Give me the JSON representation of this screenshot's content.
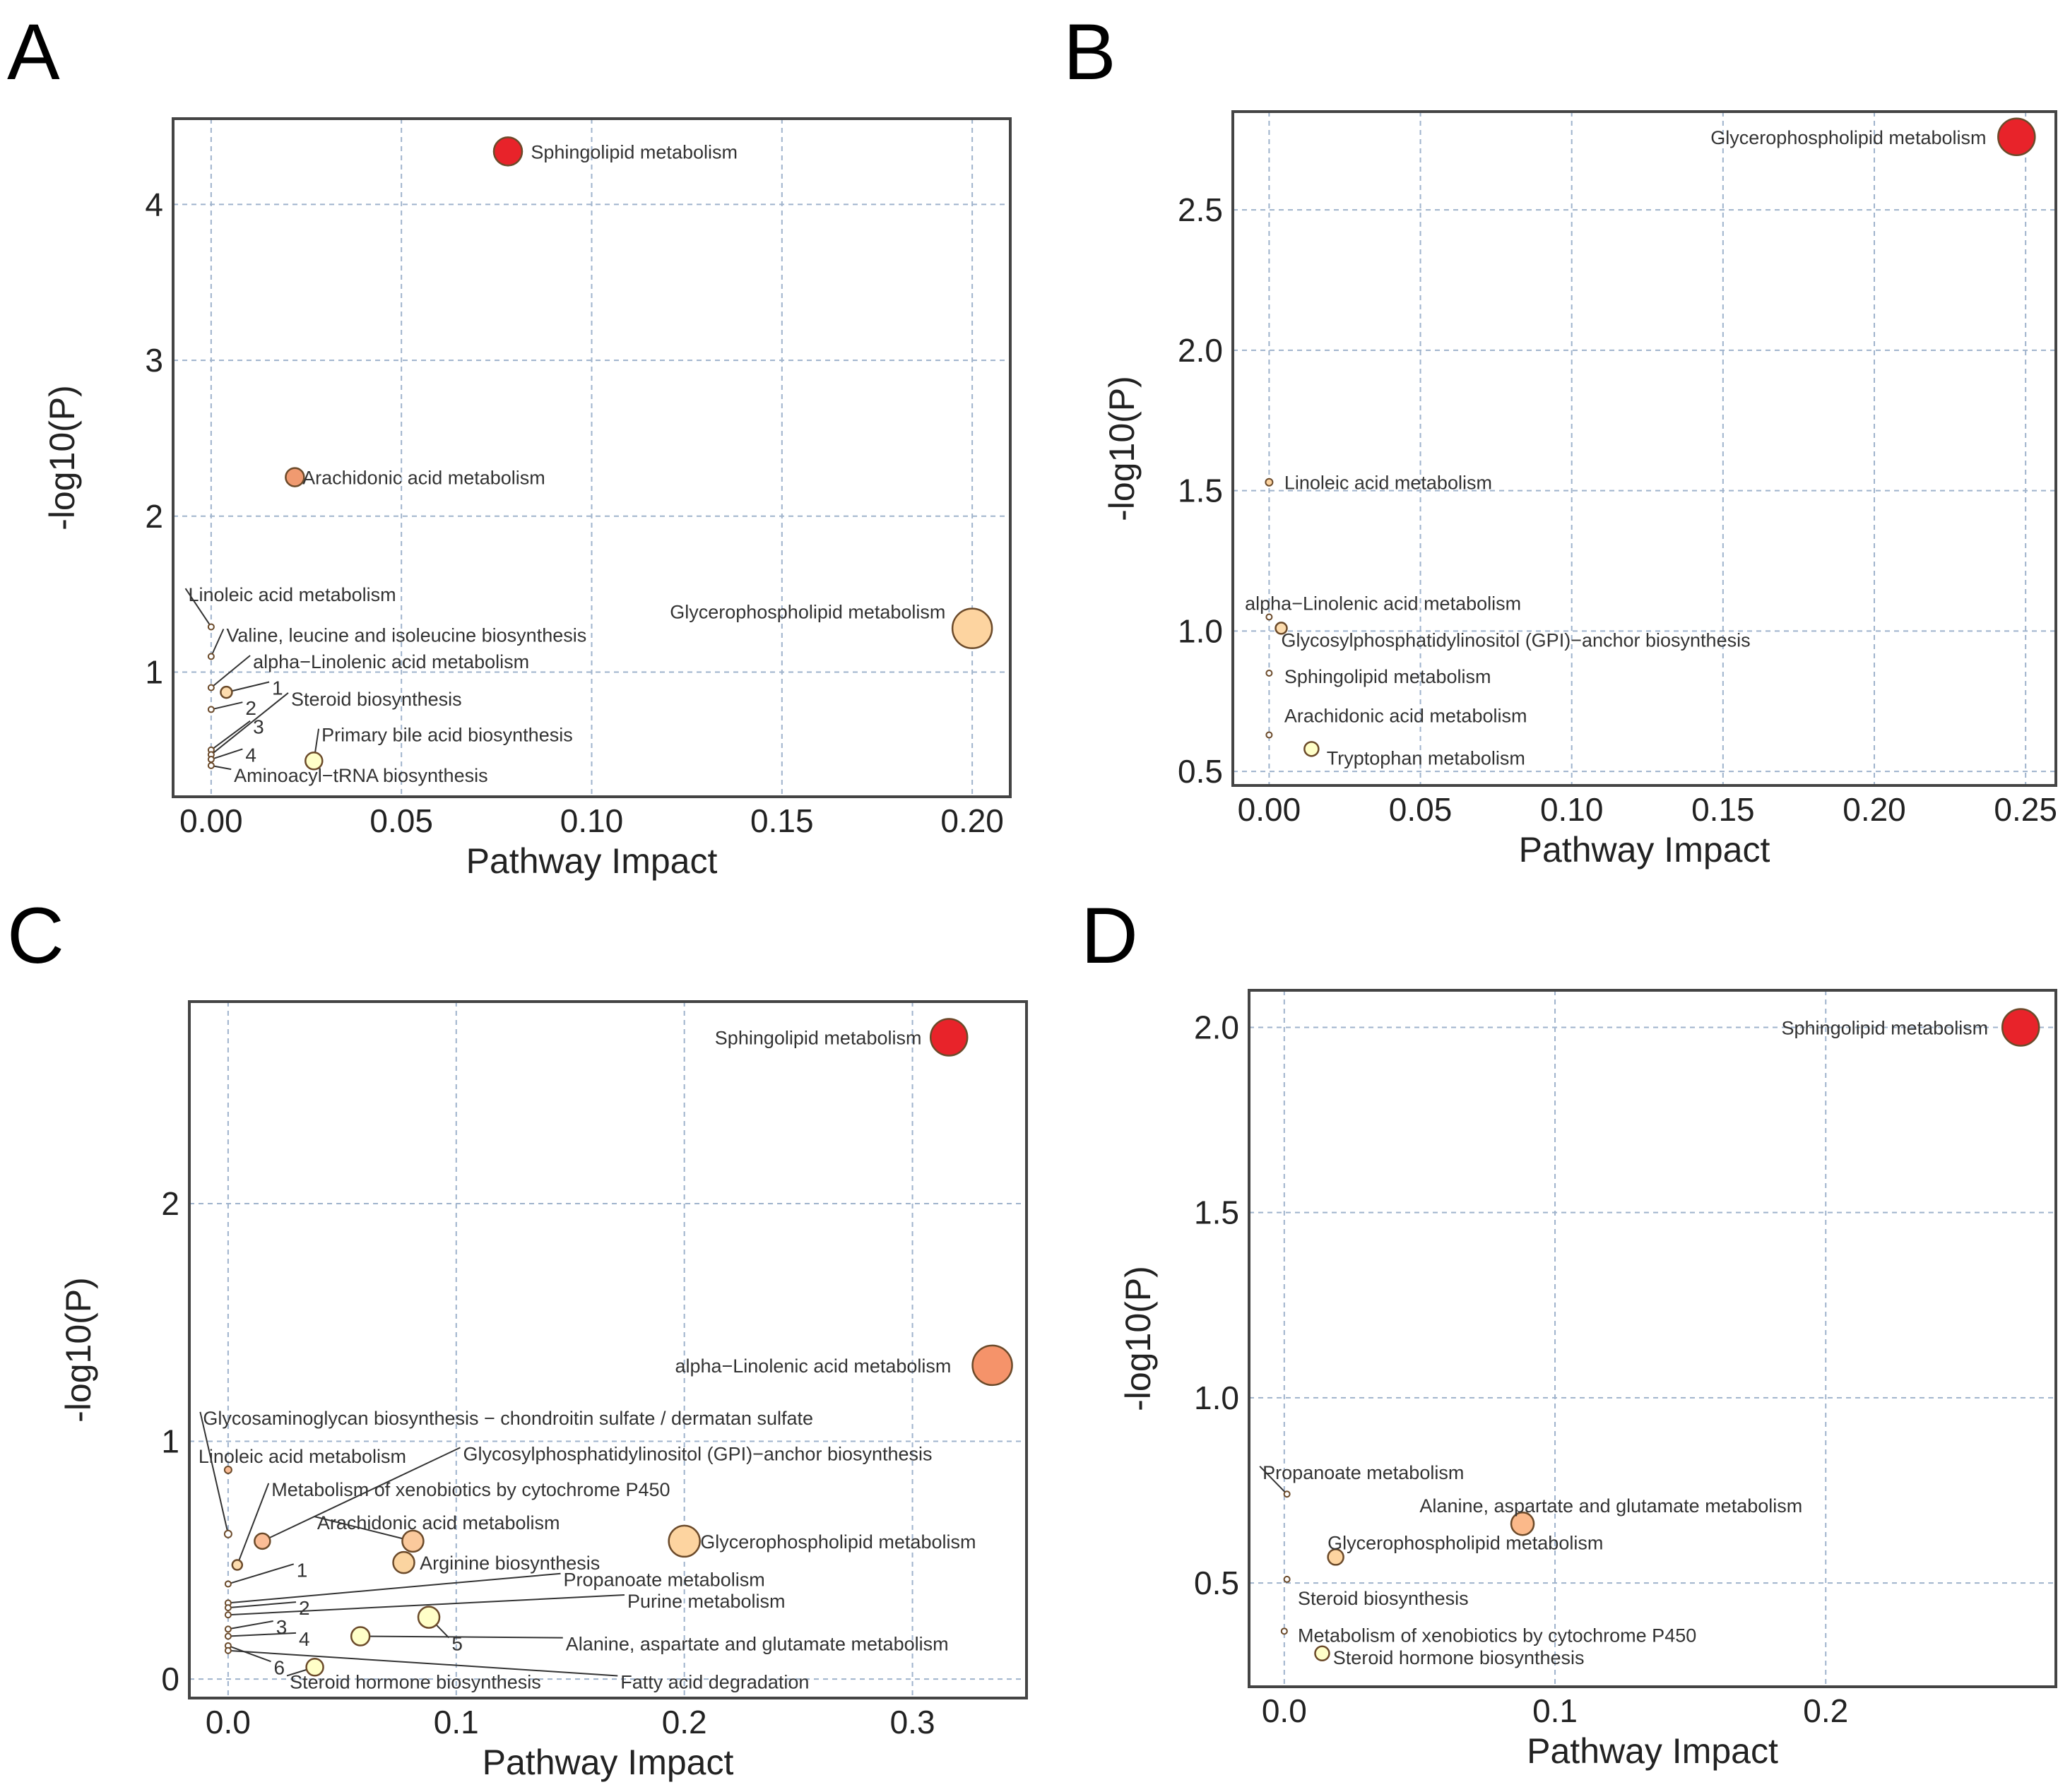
{
  "figure": {
    "panel_letters": [
      "A",
      "B",
      "C",
      "D"
    ]
  },
  "colors": {
    "grid": "#9fb3cc",
    "frame": "#444444",
    "point_stroke": "#6b4a2a",
    "leader": "#333333",
    "text": "#333333",
    "axis_text": "#222222"
  },
  "chart_data": [
    {
      "panel": "A",
      "type": "scatter",
      "xlabel": "Pathway Impact",
      "ylabel": "-log10(P)",
      "xlim": [
        -0.01,
        0.21
      ],
      "ylim": [
        0.2,
        4.55
      ],
      "xticks": [
        0,
        0.05,
        0.1,
        0.15,
        0.2
      ],
      "xtick_labels": [
        "0.00",
        "0.05",
        "0.10",
        "0.15",
        "0.20"
      ],
      "yticks": [
        1,
        2,
        3,
        4
      ],
      "ytick_labels": [
        "1",
        "2",
        "3",
        "4"
      ],
      "points": [
        {
          "x": 0.078,
          "y": 4.34,
          "r": 20,
          "color": "#e8232a",
          "label": "Sphingolipid metabolism",
          "lx": 0.084,
          "ly": 4.34,
          "anchor": "start"
        },
        {
          "x": 0.022,
          "y": 2.25,
          "r": 13,
          "color": "#f09a70",
          "label": "Arachidonic acid metabolism",
          "lx": 0.024,
          "ly": 2.25,
          "anchor": "start"
        },
        {
          "x": 0.2,
          "y": 1.28,
          "r": 28,
          "color": "#fdd4a0",
          "label": "Glycerophospholipid metabolism",
          "lx": 0.193,
          "ly": 1.39,
          "anchor": "end"
        },
        {
          "x": 0.0,
          "y": 1.29,
          "r": 4,
          "color": "#ffffff",
          "label": "Linoleic acid metabolism",
          "lx": -0.006,
          "ly": 1.5,
          "anchor": "start",
          "leader": true
        },
        {
          "x": 0.0,
          "y": 1.1,
          "r": 4,
          "color": "#ffffff",
          "label": "Valine, leucine and isoleucine biosynthesis",
          "lx": 0.004,
          "ly": 1.24,
          "anchor": "start",
          "leader": true
        },
        {
          "x": 0.0,
          "y": 0.9,
          "r": 4,
          "color": "#ffffff",
          "label": "alpha−Linolenic acid metabolism",
          "lx": 0.011,
          "ly": 1.07,
          "anchor": "start",
          "leader": true
        },
        {
          "x": 0.004,
          "y": 0.87,
          "r": 8,
          "color": "#fddcae",
          "label": "1",
          "lx": 0.016,
          "ly": 0.9,
          "anchor": "start",
          "leader": true
        },
        {
          "x": 0.0,
          "y": 0.76,
          "r": 4,
          "color": "#ffffff",
          "label": "2",
          "lx": 0.009,
          "ly": 0.77,
          "anchor": "start",
          "leader": true
        },
        {
          "x": 0.0,
          "y": 0.5,
          "r": 4,
          "color": "#ffffff",
          "label": "3",
          "lx": 0.011,
          "ly": 0.65,
          "anchor": "start",
          "leader": true
        },
        {
          "x": 0.0,
          "y": 0.47,
          "r": 4,
          "color": "#ffffff",
          "label": "Steroid biosynthesis",
          "lx": 0.021,
          "ly": 0.83,
          "anchor": "start",
          "leader": true
        },
        {
          "x": 0.0,
          "y": 0.44,
          "r": 4,
          "color": "#ffffff",
          "label": "4",
          "lx": 0.009,
          "ly": 0.47,
          "anchor": "start",
          "leader": true
        },
        {
          "x": 0.027,
          "y": 0.43,
          "r": 12,
          "color": "#ffffc8",
          "label": "Primary bile acid biosynthesis",
          "lx": 0.029,
          "ly": 0.6,
          "anchor": "start",
          "leader": true
        },
        {
          "x": 0.0,
          "y": 0.4,
          "r": 4,
          "color": "#ffffff",
          "label": "Aminoacyl−tRNA biosynthesis",
          "lx": 0.006,
          "ly": 0.34,
          "anchor": "start",
          "leader": true
        }
      ]
    },
    {
      "panel": "B",
      "type": "scatter",
      "xlabel": "Pathway Impact",
      "ylabel": "-log10(P)",
      "xlim": [
        -0.012,
        0.26
      ],
      "ylim": [
        0.45,
        2.85
      ],
      "xticks": [
        0,
        0.05,
        0.1,
        0.15,
        0.2,
        0.25
      ],
      "xtick_labels": [
        "0.00",
        "0.05",
        "0.10",
        "0.15",
        "0.20",
        "0.25"
      ],
      "yticks": [
        0.5,
        1.0,
        1.5,
        2.0,
        2.5
      ],
      "ytick_labels": [
        "0.5",
        "1.0",
        "1.5",
        "2.0",
        "2.5"
      ],
      "points": [
        {
          "x": 0.247,
          "y": 2.76,
          "r": 26,
          "color": "#e8232a",
          "label": "Glycerophospholipid metabolism",
          "lx": 0.237,
          "ly": 2.76,
          "anchor": "end"
        },
        {
          "x": 0.0,
          "y": 1.53,
          "r": 5,
          "color": "#fdd4a0",
          "label": "Linoleic acid metabolism",
          "lx": 0.005,
          "ly": 1.53,
          "anchor": "start"
        },
        {
          "x": 0.0,
          "y": 1.05,
          "r": 4,
          "color": "#ffffff",
          "label": "alpha−Linolenic acid metabolism",
          "lx": -0.008,
          "ly": 1.1,
          "anchor": "start"
        },
        {
          "x": 0.004,
          "y": 1.01,
          "r": 8,
          "color": "#fddcae",
          "label": "Glycosylphosphatidylinositol (GPI)−anchor biosynthesis",
          "lx": 0.004,
          "ly": 0.97,
          "anchor": "start"
        },
        {
          "x": 0.0,
          "y": 0.85,
          "r": 4,
          "color": "#ffffff",
          "label": "Sphingolipid metabolism",
          "lx": 0.005,
          "ly": 0.84,
          "anchor": "start"
        },
        {
          "x": 0.0,
          "y": 0.63,
          "r": 4,
          "color": "#ffffff",
          "label": "Arachidonic acid metabolism",
          "lx": 0.005,
          "ly": 0.7,
          "anchor": "start"
        },
        {
          "x": 0.014,
          "y": 0.58,
          "r": 10,
          "color": "#ffffc8",
          "label": "Tryptophan metabolism",
          "lx": 0.019,
          "ly": 0.55,
          "anchor": "start"
        }
      ]
    },
    {
      "panel": "C",
      "type": "scatter",
      "xlabel": "Pathway Impact",
      "ylabel": "-log10(P)",
      "xlim": [
        -0.017,
        0.35
      ],
      "ylim": [
        -0.08,
        2.85
      ],
      "xticks": [
        0,
        0.1,
        0.2,
        0.3
      ],
      "xtick_labels": [
        "0.0",
        "0.1",
        "0.2",
        "0.3"
      ],
      "yticks": [
        0,
        1,
        2
      ],
      "ytick_labels": [
        "0",
        "1",
        "2"
      ],
      "points": [
        {
          "x": 0.316,
          "y": 2.7,
          "r": 26,
          "color": "#e8232a",
          "label": "Sphingolipid metabolism",
          "lx": 0.304,
          "ly": 2.7,
          "anchor": "end"
        },
        {
          "x": 0.335,
          "y": 1.32,
          "r": 28,
          "color": "#f5936a",
          "label": "alpha−Linolenic acid metabolism",
          "lx": 0.317,
          "ly": 1.32,
          "anchor": "end"
        },
        {
          "x": 0.0,
          "y": 0.61,
          "r": 5,
          "color": "#ffffff",
          "label": "Glycosaminoglycan biosynthesis − chondroitin sulfate / dermatan sulfate",
          "lx": -0.011,
          "ly": 1.1,
          "anchor": "start",
          "leader": true
        },
        {
          "x": 0.0,
          "y": 0.88,
          "r": 5,
          "color": "#fbbd96",
          "label": "Linoleic acid metabolism",
          "lx": -0.013,
          "ly": 0.94,
          "anchor": "start"
        },
        {
          "x": 0.015,
          "y": 0.58,
          "r": 11,
          "color": "#fbbd96",
          "label": "Glycosylphosphatidylinositol (GPI)−anchor biosynthesis",
          "lx": 0.103,
          "ly": 0.95,
          "anchor": "start",
          "leader": true
        },
        {
          "x": 0.004,
          "y": 0.48,
          "r": 7,
          "color": "#fddcae",
          "label": "Metabolism of xenobiotics by cytochrome P450",
          "lx": 0.019,
          "ly": 0.8,
          "anchor": "start",
          "leader": true
        },
        {
          "x": 0.081,
          "y": 0.58,
          "r": 15,
          "color": "#fbc99c",
          "label": "Arachidonic acid metabolism",
          "lx": 0.039,
          "ly": 0.66,
          "anchor": "start",
          "leader": true
        },
        {
          "x": 0.2,
          "y": 0.58,
          "r": 22,
          "color": "#fdd4a0",
          "label": "Glycerophospholipid metabolism",
          "lx": 0.207,
          "ly": 0.58,
          "anchor": "start"
        },
        {
          "x": 0.077,
          "y": 0.49,
          "r": 15,
          "color": "#fbd4a0",
          "label": "Arginine biosynthesis",
          "lx": 0.084,
          "ly": 0.49,
          "anchor": "start"
        },
        {
          "x": 0.0,
          "y": 0.4,
          "r": 4,
          "color": "#ffffff",
          "label": "1",
          "lx": 0.03,
          "ly": 0.46,
          "anchor": "start",
          "leader": true
        },
        {
          "x": 0.0,
          "y": 0.32,
          "r": 4,
          "color": "#ffffff",
          "label": "Propanoate metabolism",
          "lx": 0.147,
          "ly": 0.42,
          "anchor": "start",
          "leader": true
        },
        {
          "x": 0.0,
          "y": 0.3,
          "r": 4,
          "color": "#ffffff",
          "label": "2",
          "lx": 0.031,
          "ly": 0.3,
          "anchor": "start",
          "leader": true
        },
        {
          "x": 0.0,
          "y": 0.27,
          "r": 4,
          "color": "#ffffff",
          "label": "Purine metabolism",
          "lx": 0.175,
          "ly": 0.33,
          "anchor": "start",
          "leader": true
        },
        {
          "x": 0.088,
          "y": 0.26,
          "r": 15,
          "color": "#ffffc8",
          "label": "5",
          "lx": 0.098,
          "ly": 0.15,
          "anchor": "start",
          "leader": true
        },
        {
          "x": 0.0,
          "y": 0.21,
          "r": 4,
          "color": "#ffffff",
          "label": "3",
          "lx": 0.021,
          "ly": 0.22,
          "anchor": "start",
          "leader": true
        },
        {
          "x": 0.058,
          "y": 0.18,
          "r": 13,
          "color": "#ffffc8",
          "label": "Alanine, aspartate and glutamate metabolism",
          "lx": 0.148,
          "ly": 0.15,
          "anchor": "start",
          "leader": true
        },
        {
          "x": 0.0,
          "y": 0.18,
          "r": 4,
          "color": "#ffffff",
          "label": "4",
          "lx": 0.031,
          "ly": 0.17,
          "anchor": "start",
          "leader": true
        },
        {
          "x": 0.0,
          "y": 0.14,
          "r": 4,
          "color": "#ffffff",
          "label": "6",
          "lx": 0.02,
          "ly": 0.05,
          "anchor": "start",
          "leader": true
        },
        {
          "x": 0.0,
          "y": 0.12,
          "r": 4,
          "color": "#ffffff",
          "label": "Fatty acid degradation",
          "lx": 0.172,
          "ly": -0.01,
          "anchor": "start",
          "leader": true
        },
        {
          "x": 0.038,
          "y": 0.05,
          "r": 12,
          "color": "#ffffc8",
          "label": "Steroid hormone biosynthesis",
          "lx": 0.027,
          "ly": -0.01,
          "anchor": "start",
          "leader": true
        }
      ]
    },
    {
      "panel": "D",
      "type": "scatter",
      "xlabel": "Pathway Impact",
      "ylabel": "-log10(P)",
      "xlim": [
        -0.013,
        0.285
      ],
      "ylim": [
        0.22,
        2.1
      ],
      "xticks": [
        0,
        0.1,
        0.2
      ],
      "xtick_labels": [
        "0.0",
        "0.1",
        "0.2"
      ],
      "yticks": [
        0.5,
        1.0,
        1.5,
        2.0
      ],
      "ytick_labels": [
        "0.5",
        "1.0",
        "1.5",
        "2.0"
      ],
      "points": [
        {
          "x": 0.272,
          "y": 2.0,
          "r": 26,
          "color": "#e8232a",
          "label": "Sphingolipid metabolism",
          "lx": 0.26,
          "ly": 2.0,
          "anchor": "end"
        },
        {
          "x": 0.001,
          "y": 0.74,
          "r": 4,
          "color": "#ffffff",
          "label": "Propanoate metabolism",
          "lx": -0.008,
          "ly": 0.8,
          "anchor": "start",
          "leader": true
        },
        {
          "x": 0.088,
          "y": 0.66,
          "r": 16,
          "color": "#fbb98a",
          "label": "Alanine, aspartate and glutamate metabolism",
          "lx": 0.05,
          "ly": 0.71,
          "anchor": "start"
        },
        {
          "x": 0.019,
          "y": 0.57,
          "r": 11,
          "color": "#fdd4a0",
          "label": "Glycerophospholipid metabolism",
          "lx": 0.016,
          "ly": 0.61,
          "anchor": "start"
        },
        {
          "x": 0.001,
          "y": 0.51,
          "r": 4,
          "color": "#ffffff",
          "label": "Steroid biosynthesis",
          "lx": 0.005,
          "ly": 0.46,
          "anchor": "start"
        },
        {
          "x": 0.0,
          "y": 0.37,
          "r": 4,
          "color": "#ffffff",
          "label": "Metabolism of xenobiotics by cytochrome P450",
          "lx": 0.005,
          "ly": 0.36,
          "anchor": "start"
        },
        {
          "x": 0.014,
          "y": 0.31,
          "r": 10,
          "color": "#ffffc8",
          "label": "Steroid hormone biosynthesis",
          "lx": 0.018,
          "ly": 0.3,
          "anchor": "start"
        }
      ]
    }
  ]
}
